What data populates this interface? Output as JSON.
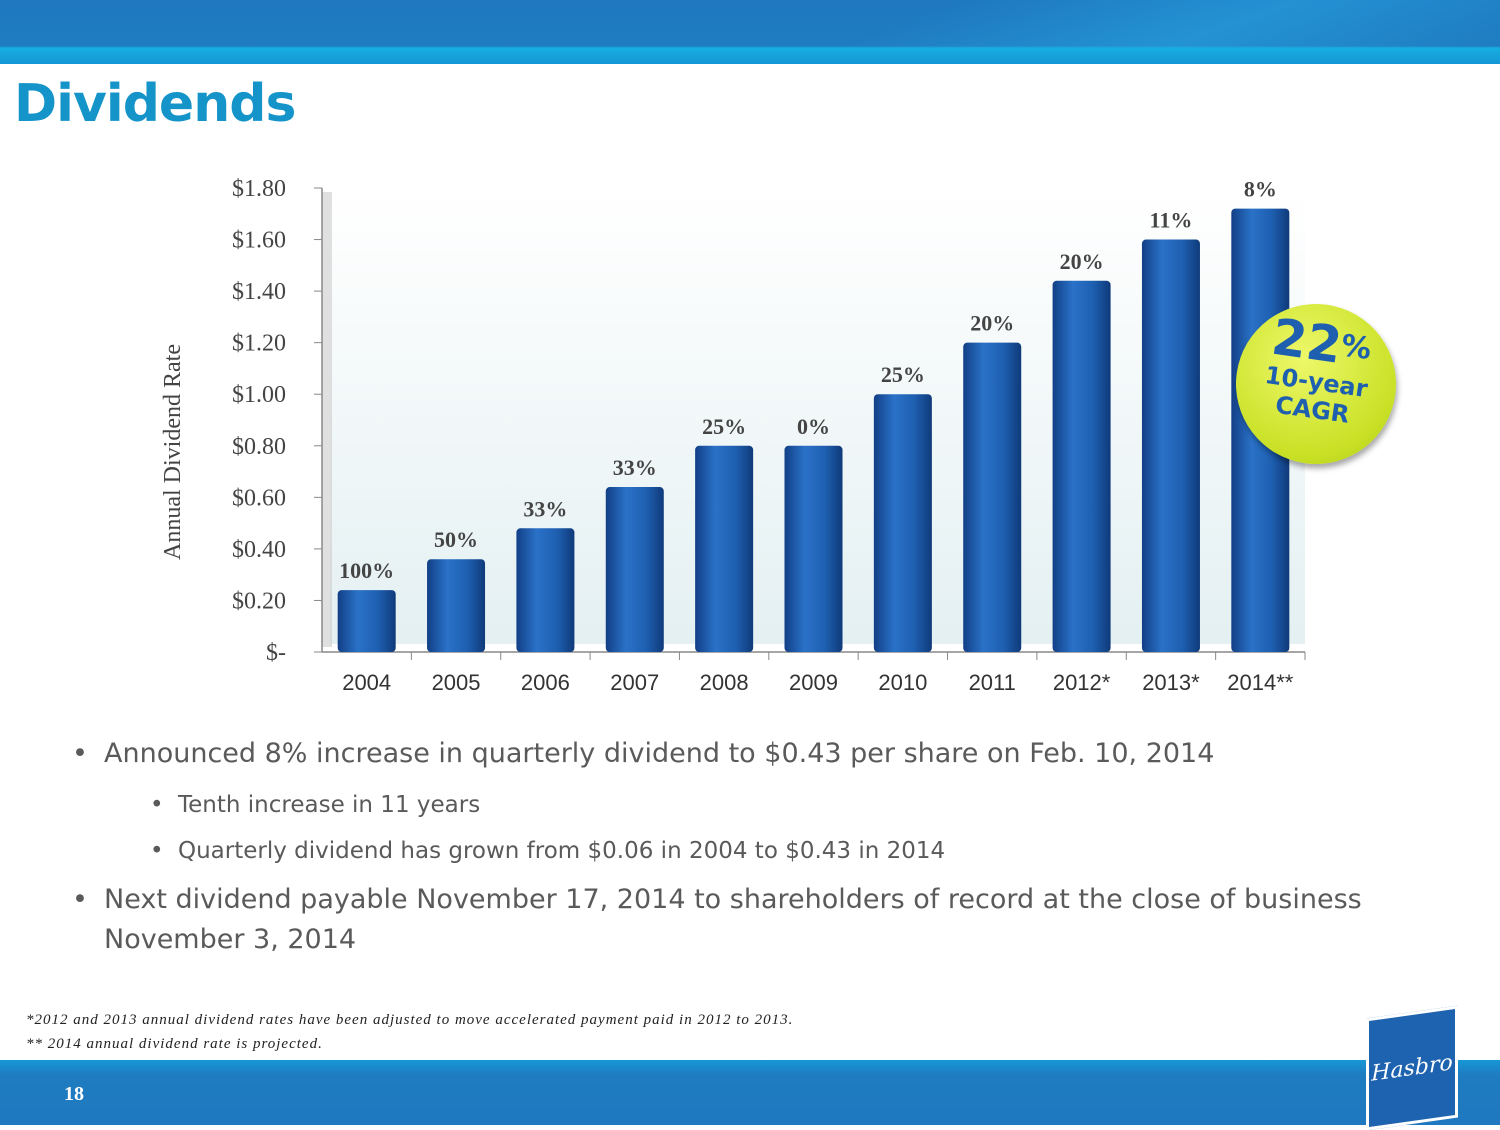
{
  "title": "Dividends",
  "chart_data": {
    "type": "bar",
    "title": "",
    "xlabel": "",
    "ylabel": "Annual Dividend Rate",
    "ylim": [
      0,
      1.8
    ],
    "yticks": [
      "$-",
      "$0.20",
      "$0.40",
      "$0.60",
      "$0.80",
      "$1.00",
      "$1.20",
      "$1.40",
      "$1.60",
      "$1.80"
    ],
    "categories": [
      "2004",
      "2005",
      "2006",
      "2007",
      "2008",
      "2009",
      "2010",
      "2011",
      "2012*",
      "2013*",
      "2014**"
    ],
    "values": [
      0.24,
      0.36,
      0.48,
      0.64,
      0.8,
      0.8,
      1.0,
      1.2,
      1.44,
      1.6,
      1.72
    ],
    "data_labels": [
      "100%",
      "50%",
      "33%",
      "33%",
      "25%",
      "0%",
      "25%",
      "20%",
      "20%",
      "11%",
      "8%"
    ],
    "bar_color": "#1e5fb0"
  },
  "badge": {
    "value": "22",
    "pct": "%",
    "line1": "10-year",
    "line2": "CAGR"
  },
  "bullets": [
    {
      "text": "Announced 8% increase in quarterly dividend to $0.43 per share on Feb. 10, 2014",
      "sub": [
        "Tenth increase in 11 years",
        "Quarterly dividend has grown from $0.06 in 2004 to $0.43 in 2014"
      ]
    },
    {
      "text": "Next dividend payable November 17, 2014 to shareholders of record at the close of business November 3, 2014"
    }
  ],
  "bullet_char": "•",
  "footnotes": [
    "*2012 and 2013 annual dividend rates have been adjusted to move accelerated payment paid in 2012 to 2013.",
    "** 2014 annual dividend rate is projected."
  ],
  "page_number": "18",
  "logo_text": "Hasbro"
}
